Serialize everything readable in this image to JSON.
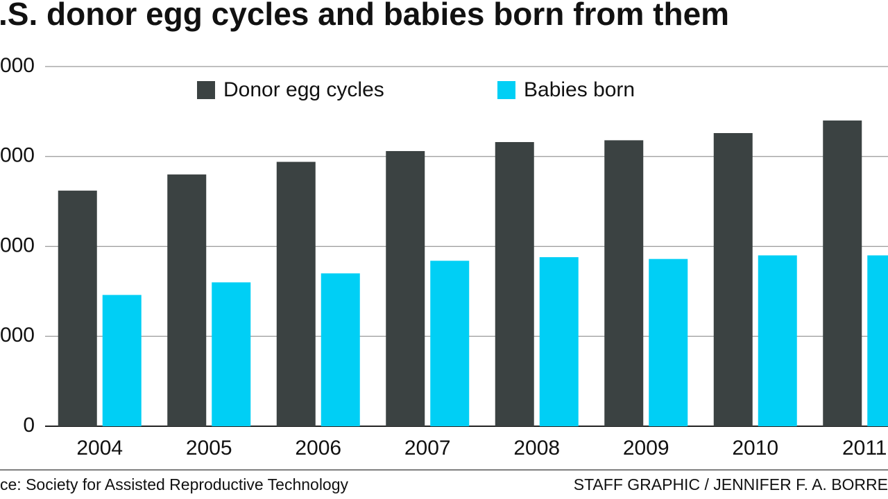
{
  "chart_data": {
    "type": "bar",
    "title": ".S. donor egg cycles and babies born from them",
    "categories": [
      "2004",
      "2005",
      "2006",
      "2007",
      "2008",
      "2009",
      "2010",
      "2011"
    ],
    "series": [
      {
        "name": "Donor egg cycles",
        "color": "#3b4242",
        "values": [
          13100,
          14000,
          14700,
          15300,
          15800,
          15900,
          16300,
          17000
        ]
      },
      {
        "name": "Babies born",
        "color": "#00cff5",
        "values": [
          7300,
          8000,
          8500,
          9200,
          9400,
          9300,
          9500,
          9500
        ]
      }
    ],
    "ylim": [
      0,
      20000
    ],
    "yticks": [
      0,
      {
        "value": 5000,
        "label": "000"
      },
      {
        "value": 10000,
        "label": "000"
      },
      {
        "value": 15000,
        "label": "000"
      },
      {
        "value": 20000,
        "label": "000"
      }
    ],
    "grid": true,
    "source": "ce: Society for Assisted Reproductive Technology",
    "credit": "STAFF GRAPHIC / JENNIFER F. A. BORRE"
  }
}
